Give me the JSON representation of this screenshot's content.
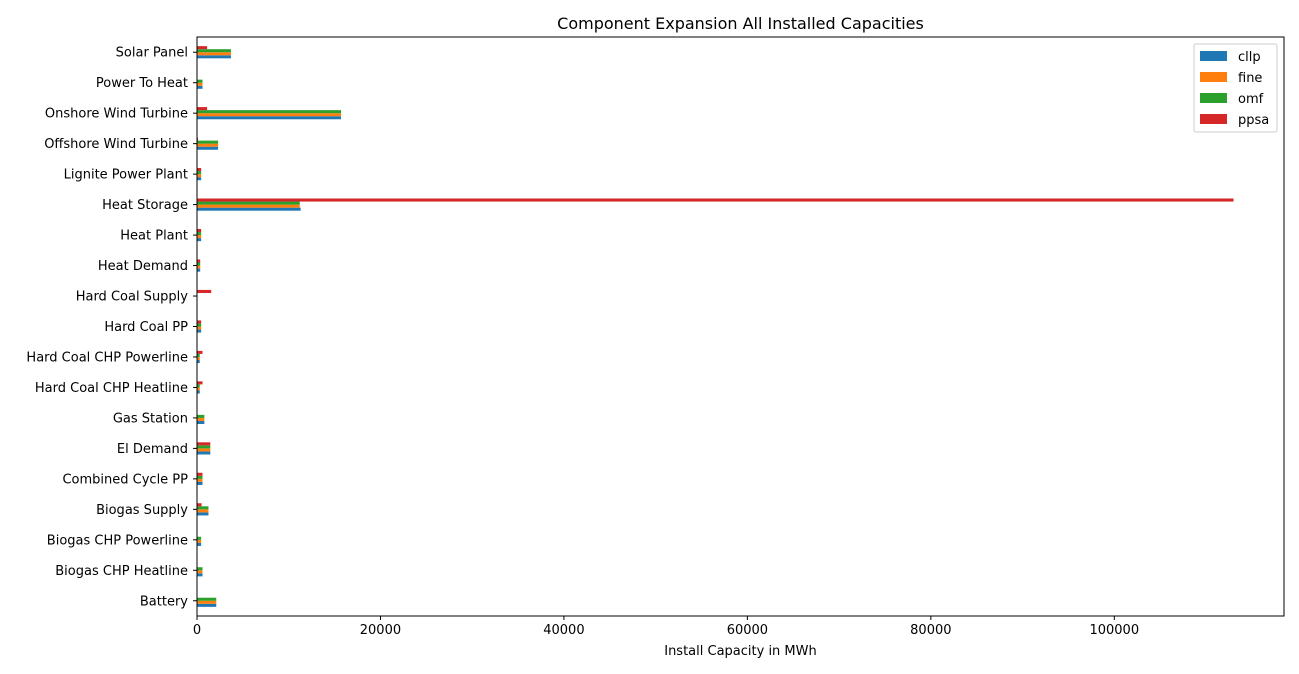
{
  "chart_data": {
    "type": "bar",
    "orientation": "horizontal",
    "title": "Component Expansion All Installed Capacities",
    "xlabel": "Install Capacity in MWh",
    "ylabel": "",
    "xlim": [
      0,
      118500
    ],
    "xticks": [
      0,
      20000,
      40000,
      60000,
      80000,
      100000
    ],
    "xtick_labels": [
      "0",
      "20000",
      "40000",
      "60000",
      "80000",
      "100000"
    ],
    "grid": false,
    "legend_position": "top-right",
    "categories": [
      "Solar Panel",
      "Power To Heat",
      "Onshore Wind Turbine",
      "Offshore Wind Turbine",
      "Lignite Power Plant",
      "Heat Storage",
      "Heat Plant",
      "Heat Demand",
      "Hard Coal Supply",
      "Hard Coal PP",
      "Hard Coal CHP Powerline",
      "Hard Coal CHP Heatline",
      "Gas Station",
      "El Demand",
      "Combined Cycle PP",
      "Biogas Supply",
      "Biogas CHP Powerline",
      "Biogas CHP Heatline",
      "Battery"
    ],
    "series": [
      {
        "name": "cllp",
        "color": "#1f77b4",
        "values": [
          3700,
          600,
          15700,
          2300,
          450,
          11300,
          450,
          350,
          0,
          450,
          300,
          300,
          800,
          1450,
          600,
          1250,
          450,
          600,
          2100
        ]
      },
      {
        "name": "fine",
        "color": "#ff7f0e",
        "values": [
          3700,
          600,
          15700,
          2300,
          450,
          11200,
          450,
          350,
          0,
          450,
          300,
          300,
          800,
          1450,
          600,
          1250,
          450,
          600,
          2100
        ]
      },
      {
        "name": "omf",
        "color": "#2ca02c",
        "values": [
          3700,
          600,
          15700,
          2300,
          450,
          11200,
          450,
          350,
          0,
          450,
          300,
          300,
          800,
          1450,
          600,
          1250,
          450,
          600,
          2100
        ]
      },
      {
        "name": "ppsa",
        "color": "#d62728",
        "values": [
          1100,
          0,
          1100,
          100,
          450,
          113000,
          450,
          350,
          1550,
          450,
          600,
          600,
          0,
          1450,
          600,
          500,
          0,
          0,
          0
        ]
      }
    ]
  }
}
